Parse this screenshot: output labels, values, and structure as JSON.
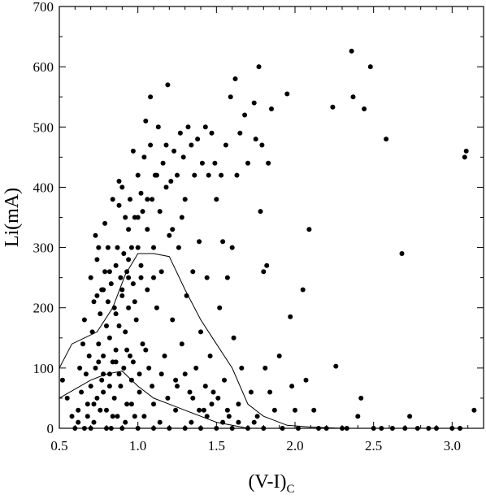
{
  "chart_data": {
    "type": "scatter",
    "xlabel": "(V-I)",
    "xlabel_subscript": "C",
    "ylabel": "Li(mA)",
    "xlim": [
      0.5,
      3.2
    ],
    "ylim": [
      0,
      700
    ],
    "x_ticks": [
      0.5,
      1.0,
      1.5,
      2.0,
      2.5,
      3.0
    ],
    "x_tick_labels": [
      "0.5",
      "1.0",
      "1.5",
      "2.0",
      "2.5",
      "3.0"
    ],
    "y_ticks": [
      0,
      100,
      200,
      300,
      400,
      500,
      600,
      700
    ],
    "y_tick_labels": [
      "0",
      "100",
      "200",
      "300",
      "400",
      "500",
      "600",
      "700"
    ],
    "grid": false,
    "point_color": "#000000",
    "points": [
      [
        0.52,
        80
      ],
      [
        0.55,
        50
      ],
      [
        0.58,
        20
      ],
      [
        0.6,
        0
      ],
      [
        0.62,
        30
      ],
      [
        0.63,
        100
      ],
      [
        0.64,
        60
      ],
      [
        0.65,
        140
      ],
      [
        0.66,
        180
      ],
      [
        0.67,
        90
      ],
      [
        0.68,
        40
      ],
      [
        0.69,
        120
      ],
      [
        0.7,
        70
      ],
      [
        0.7,
        250
      ],
      [
        0.71,
        160
      ],
      [
        0.72,
        210
      ],
      [
        0.72,
        10
      ],
      [
        0.73,
        100
      ],
      [
        0.74,
        50
      ],
      [
        0.74,
        280
      ],
      [
        0.75,
        140
      ],
      [
        0.75,
        300
      ],
      [
        0.76,
        190
      ],
      [
        0.77,
        230
      ],
      [
        0.77,
        80
      ],
      [
        0.78,
        60
      ],
      [
        0.78,
        120
      ],
      [
        0.79,
        260
      ],
      [
        0.8,
        170
      ],
      [
        0.8,
        30
      ],
      [
        0.81,
        210
      ],
      [
        0.81,
        300
      ],
      [
        0.82,
        90
      ],
      [
        0.82,
        150
      ],
      [
        0.83,
        240
      ],
      [
        0.83,
        0
      ],
      [
        0.84,
        110
      ],
      [
        0.84,
        380
      ],
      [
        0.85,
        200
      ],
      [
        0.85,
        50
      ],
      [
        0.86,
        270
      ],
      [
        0.86,
        130
      ],
      [
        0.87,
        300
      ],
      [
        0.87,
        20
      ],
      [
        0.88,
        170
      ],
      [
        0.88,
        410
      ],
      [
        0.89,
        70
      ],
      [
        0.89,
        250
      ],
      [
        0.9,
        220
      ],
      [
        0.9,
        400
      ],
      [
        0.91,
        100
      ],
      [
        0.91,
        290
      ],
      [
        0.92,
        160
      ],
      [
        0.92,
        350
      ],
      [
        0.93,
        260
      ],
      [
        0.93,
        40
      ],
      [
        0.94,
        330
      ],
      [
        0.94,
        200
      ],
      [
        0.95,
        120
      ],
      [
        0.95,
        380
      ],
      [
        0.96,
        300
      ],
      [
        0.96,
        80
      ],
      [
        0.97,
        460
      ],
      [
        0.97,
        240
      ],
      [
        0.98,
        350
      ],
      [
        0.98,
        20
      ],
      [
        0.99,
        180
      ],
      [
        1.0,
        420
      ],
      [
        1.0,
        300
      ],
      [
        1.01,
        60
      ],
      [
        1.02,
        390
      ],
      [
        1.02,
        250
      ],
      [
        1.03,
        360
      ],
      [
        1.03,
        140
      ],
      [
        1.04,
        450
      ],
      [
        1.05,
        510
      ],
      [
        1.06,
        330
      ],
      [
        1.07,
        100
      ],
      [
        1.08,
        470
      ],
      [
        1.08,
        550
      ],
      [
        1.09,
        380
      ],
      [
        1.1,
        300
      ],
      [
        1.1,
        40
      ],
      [
        1.11,
        420
      ],
      [
        1.12,
        200
      ],
      [
        1.13,
        500
      ],
      [
        1.14,
        360
      ],
      [
        1.15,
        260
      ],
      [
        1.16,
        440
      ],
      [
        1.17,
        120
      ],
      [
        1.18,
        470
      ],
      [
        1.19,
        570
      ],
      [
        1.2,
        320
      ],
      [
        1.21,
        410
      ],
      [
        1.22,
        180
      ],
      [
        1.23,
        460
      ],
      [
        1.24,
        80
      ],
      [
        1.25,
        420
      ],
      [
        1.26,
        300
      ],
      [
        1.27,
        490
      ],
      [
        1.28,
        140
      ],
      [
        1.29,
        450
      ],
      [
        1.3,
        380
      ],
      [
        1.31,
        220
      ],
      [
        1.32,
        500
      ],
      [
        1.33,
        60
      ],
      [
        1.34,
        470
      ],
      [
        1.35,
        260
      ],
      [
        1.36,
        420
      ],
      [
        1.37,
        100
      ],
      [
        1.38,
        480
      ],
      [
        1.39,
        310
      ],
      [
        1.4,
        160
      ],
      [
        1.41,
        440
      ],
      [
        1.42,
        30
      ],
      [
        1.43,
        500
      ],
      [
        1.44,
        250
      ],
      [
        1.45,
        420
      ],
      [
        1.46,
        120
      ],
      [
        1.47,
        490
      ],
      [
        1.48,
        60
      ],
      [
        1.49,
        440
      ],
      [
        1.5,
        380
      ],
      [
        1.52,
        200
      ],
      [
        1.53,
        420
      ],
      [
        1.54,
        310
      ],
      [
        1.55,
        80
      ],
      [
        1.56,
        470
      ],
      [
        1.57,
        250
      ],
      [
        1.58,
        20
      ],
      [
        1.59,
        550
      ],
      [
        1.6,
        300
      ],
      [
        1.61,
        150
      ],
      [
        1.62,
        580
      ],
      [
        1.63,
        420
      ],
      [
        1.64,
        40
      ],
      [
        1.65,
        490
      ],
      [
        1.66,
        100
      ],
      [
        1.68,
        520
      ],
      [
        1.7,
        440
      ],
      [
        1.72,
        60
      ],
      [
        1.74,
        540
      ],
      [
        1.75,
        480
      ],
      [
        1.76,
        20
      ],
      [
        1.77,
        600
      ],
      [
        1.78,
        360
      ],
      [
        1.79,
        470
      ],
      [
        1.8,
        260
      ],
      [
        1.81,
        100
      ],
      [
        1.82,
        270
      ],
      [
        1.83,
        440
      ],
      [
        1.84,
        60
      ],
      [
        1.85,
        530
      ],
      [
        1.87,
        30
      ],
      [
        1.9,
        120
      ],
      [
        1.92,
        0
      ],
      [
        1.95,
        555
      ],
      [
        1.97,
        185
      ],
      [
        1.98,
        70
      ],
      [
        2.0,
        30
      ],
      [
        2.02,
        0
      ],
      [
        2.05,
        230
      ],
      [
        2.07,
        80
      ],
      [
        2.09,
        330
      ],
      [
        2.12,
        30
      ],
      [
        2.15,
        0
      ],
      [
        2.2,
        0
      ],
      [
        2.24,
        533
      ],
      [
        2.26,
        103
      ],
      [
        2.3,
        0
      ],
      [
        2.33,
        0
      ],
      [
        2.36,
        626
      ],
      [
        2.37,
        550
      ],
      [
        2.4,
        20
      ],
      [
        2.42,
        50
      ],
      [
        2.44,
        530
      ],
      [
        2.48,
        600
      ],
      [
        2.5,
        0
      ],
      [
        2.55,
        0
      ],
      [
        2.58,
        480
      ],
      [
        2.62,
        0
      ],
      [
        2.68,
        290
      ],
      [
        2.7,
        0
      ],
      [
        2.73,
        20
      ],
      [
        2.78,
        0
      ],
      [
        2.85,
        0
      ],
      [
        2.9,
        0
      ],
      [
        3.0,
        0
      ],
      [
        3.05,
        0
      ],
      [
        3.08,
        450
      ],
      [
        3.09,
        460
      ],
      [
        3.14,
        30
      ],
      [
        0.66,
        0
      ],
      [
        0.7,
        0
      ],
      [
        0.8,
        0
      ],
      [
        0.9,
        0
      ],
      [
        1.0,
        0
      ],
      [
        1.1,
        0
      ],
      [
        1.2,
        0
      ],
      [
        1.3,
        0
      ],
      [
        1.4,
        0
      ],
      [
        1.5,
        0
      ],
      [
        1.6,
        0
      ],
      [
        1.7,
        0
      ],
      [
        1.8,
        0
      ],
      [
        0.62,
        10
      ],
      [
        0.68,
        20
      ],
      [
        0.72,
        40
      ],
      [
        0.76,
        30
      ],
      [
        0.84,
        20
      ],
      [
        0.92,
        10
      ],
      [
        0.96,
        40
      ],
      [
        1.04,
        20
      ],
      [
        1.14,
        10
      ],
      [
        1.24,
        30
      ],
      [
        1.34,
        10
      ],
      [
        1.44,
        20
      ],
      [
        1.54,
        10
      ],
      [
        1.64,
        10
      ],
      [
        1.74,
        10
      ],
      [
        0.73,
        320
      ],
      [
        0.79,
        340
      ],
      [
        0.88,
        370
      ],
      [
        0.94,
        280
      ],
      [
        1.0,
        350
      ],
      [
        1.06,
        380
      ],
      [
        1.12,
        420
      ],
      [
        1.18,
        400
      ],
      [
        1.22,
        330
      ],
      [
        1.28,
        350
      ],
      [
        0.75,
        110
      ],
      [
        0.78,
        90
      ],
      [
        0.82,
        70
      ],
      [
        0.86,
        110
      ],
      [
        0.88,
        90
      ],
      [
        0.93,
        130
      ],
      [
        0.97,
        110
      ],
      [
        1.01,
        90
      ],
      [
        1.05,
        130
      ],
      [
        1.09,
        70
      ],
      [
        1.15,
        90
      ],
      [
        1.19,
        50
      ],
      [
        1.25,
        70
      ],
      [
        1.3,
        90
      ],
      [
        1.35,
        50
      ],
      [
        1.39,
        30
      ],
      [
        1.43,
        70
      ],
      [
        1.47,
        40
      ],
      [
        1.51,
        50
      ],
      [
        1.57,
        30
      ],
      [
        0.74,
        220
      ],
      [
        0.78,
        230
      ],
      [
        0.82,
        260
      ],
      [
        0.86,
        190
      ],
      [
        0.9,
        230
      ],
      [
        0.94,
        250
      ],
      [
        0.98,
        210
      ],
      [
        1.02,
        270
      ],
      [
        1.06,
        230
      ],
      [
        1.1,
        250
      ]
    ],
    "curves": [
      {
        "points": [
          [
            0.5,
            100
          ],
          [
            0.58,
            140
          ],
          [
            0.66,
            150
          ],
          [
            0.74,
            160
          ],
          [
            0.84,
            200
          ],
          [
            0.92,
            255
          ],
          [
            1.0,
            290
          ],
          [
            1.1,
            290
          ],
          [
            1.2,
            285
          ],
          [
            1.3,
            230
          ],
          [
            1.4,
            180
          ],
          [
            1.5,
            140
          ],
          [
            1.6,
            100
          ],
          [
            1.7,
            40
          ],
          [
            1.8,
            20
          ],
          [
            1.95,
            5
          ],
          [
            2.1,
            2
          ],
          [
            2.3,
            0
          ],
          [
            2.6,
            0
          ],
          [
            3.0,
            0
          ],
          [
            3.2,
            0
          ]
        ]
      },
      {
        "points": [
          [
            0.5,
            50
          ],
          [
            0.6,
            65
          ],
          [
            0.7,
            80
          ],
          [
            0.8,
            90
          ],
          [
            0.9,
            95
          ],
          [
            1.0,
            70
          ],
          [
            1.1,
            50
          ],
          [
            1.2,
            40
          ],
          [
            1.3,
            30
          ],
          [
            1.4,
            20
          ],
          [
            1.5,
            10
          ],
          [
            1.6,
            5
          ],
          [
            1.7,
            0
          ],
          [
            1.8,
            0
          ]
        ]
      }
    ]
  }
}
